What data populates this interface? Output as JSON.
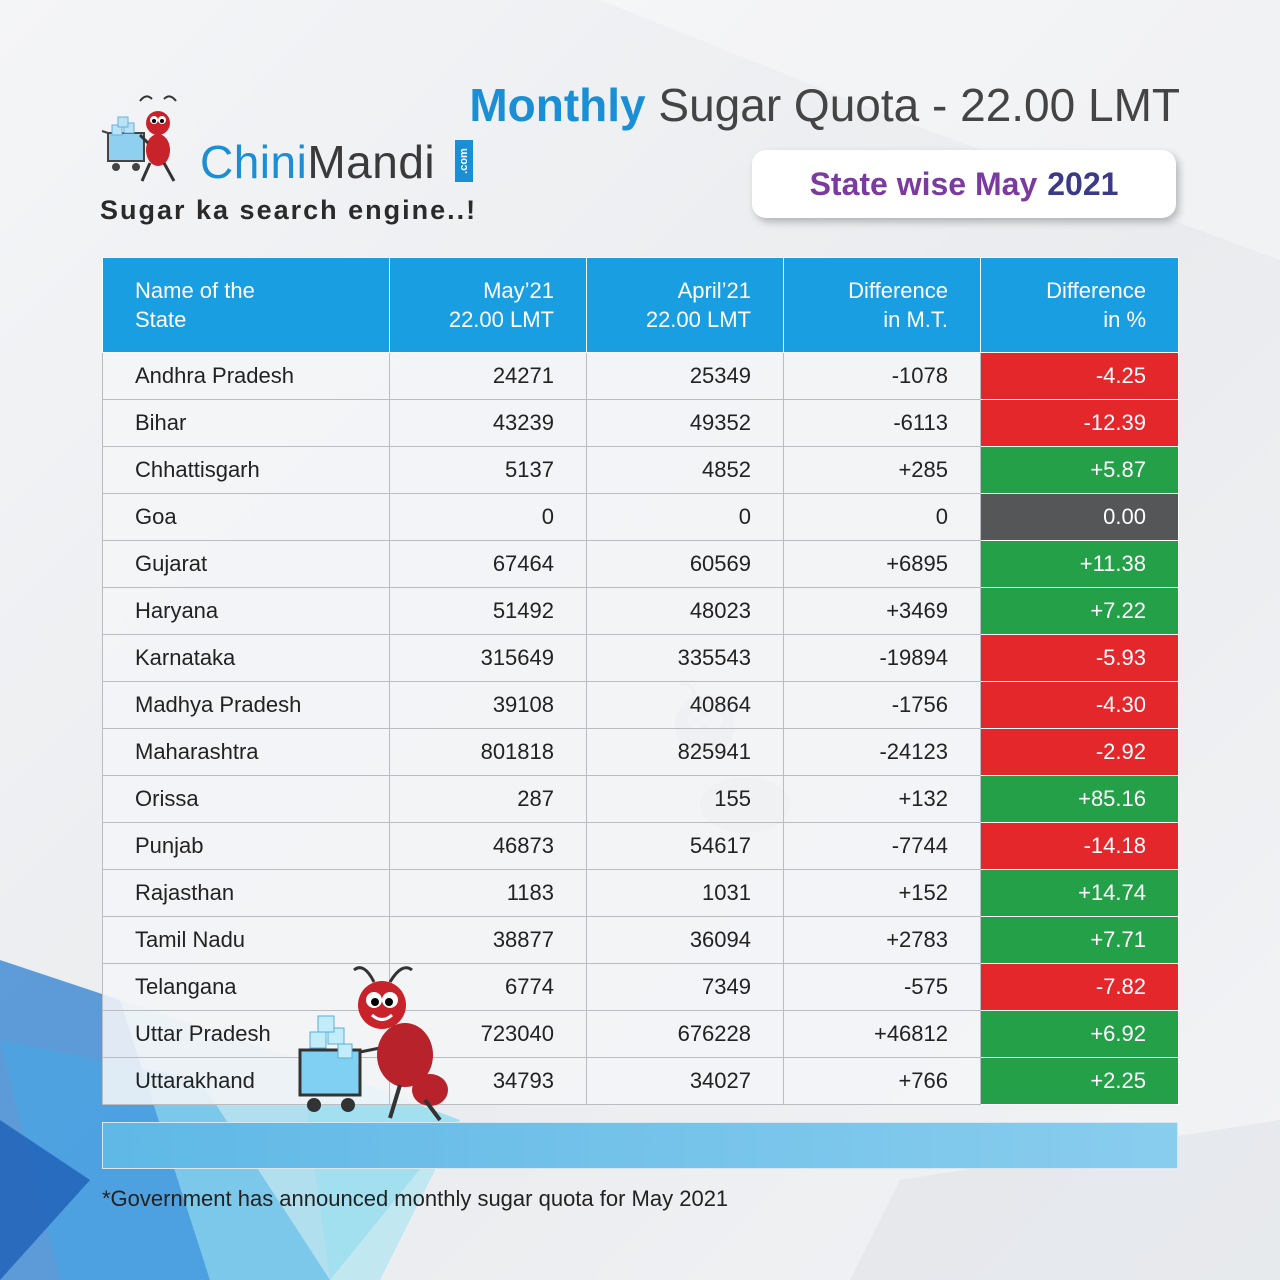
{
  "brand": {
    "name_part1": "Chini",
    "name_part2": "Mandi",
    "domain_badge": ".com",
    "tagline": "Sugar ka search engine..!"
  },
  "header": {
    "title_accent": "Monthly",
    "title_rest": " Sugar Quota - 22.00 LMT",
    "subtitle": "State wise May",
    "subtitle_year": "2021"
  },
  "table": {
    "headers": [
      [
        "Name of the",
        "State"
      ],
      [
        "May’21",
        "22.00 LMT"
      ],
      [
        "April’21",
        "22.00 LMT"
      ],
      [
        "Difference",
        "in M.T."
      ],
      [
        "Difference",
        "in %"
      ]
    ],
    "rows": [
      {
        "state": "Andhra Pradesh",
        "may": "24271",
        "april": "25349",
        "diff": "-1078",
        "pct": "-4.25",
        "trend": "neg"
      },
      {
        "state": "Bihar",
        "may": "43239",
        "april": "49352",
        "diff": "-6113",
        "pct": "-12.39",
        "trend": "neg"
      },
      {
        "state": "Chhattisgarh",
        "may": "5137",
        "april": "4852",
        "diff": "+285",
        "pct": "+5.87",
        "trend": "pos"
      },
      {
        "state": "Goa",
        "may": "0",
        "april": "0",
        "diff": "0",
        "pct": "0.00",
        "trend": "zero"
      },
      {
        "state": "Gujarat",
        "may": "67464",
        "april": "60569",
        "diff": "+6895",
        "pct": "+11.38",
        "trend": "pos"
      },
      {
        "state": "Haryana",
        "may": "51492",
        "april": "48023",
        "diff": "+3469",
        "pct": "+7.22",
        "trend": "pos"
      },
      {
        "state": "Karnataka",
        "may": "315649",
        "april": "335543",
        "diff": "-19894",
        "pct": "-5.93",
        "trend": "neg"
      },
      {
        "state": "Madhya Pradesh",
        "may": "39108",
        "april": "40864",
        "diff": "-1756",
        "pct": "-4.30",
        "trend": "neg"
      },
      {
        "state": "Maharashtra",
        "may": "801818",
        "april": "825941",
        "diff": "-24123",
        "pct": "-2.92",
        "trend": "neg"
      },
      {
        "state": "Orissa",
        "may": "287",
        "april": "155",
        "diff": "+132",
        "pct": "+85.16",
        "trend": "pos"
      },
      {
        "state": "Punjab",
        "may": "46873",
        "april": "54617",
        "diff": "-7744",
        "pct": "-14.18",
        "trend": "neg"
      },
      {
        "state": "Rajasthan",
        "may": "1183",
        "april": "1031",
        "diff": "+152",
        "pct": "+14.74",
        "trend": "pos"
      },
      {
        "state": "Tamil Nadu",
        "may": "38877",
        "april": "36094",
        "diff": "+2783",
        "pct": "+7.71",
        "trend": "pos"
      },
      {
        "state": "Telangana",
        "may": "6774",
        "april": "7349",
        "diff": "-575",
        "pct": "-7.82",
        "trend": "neg"
      },
      {
        "state": "Uttar Pradesh",
        "may": "723040",
        "april": "676228",
        "diff": "+46812",
        "pct": "+6.92",
        "trend": "pos"
      },
      {
        "state": "Uttarakhand",
        "may": "34793",
        "april": "34027",
        "diff": "+766",
        "pct": "+2.25",
        "trend": "pos"
      }
    ]
  },
  "footnote": "*Government has announced monthly sugar quota for May 2021",
  "colors": {
    "accent": "#1a9ee2",
    "negative": "#e3272b",
    "positive": "#23a048",
    "neutral": "#555658",
    "subtitle": "#7a3aa0"
  },
  "icons": {
    "logo": "ant-shopping-cart-icon",
    "mascot": "ant-mascot-icon",
    "watermark": "ant-watermark-icon"
  }
}
